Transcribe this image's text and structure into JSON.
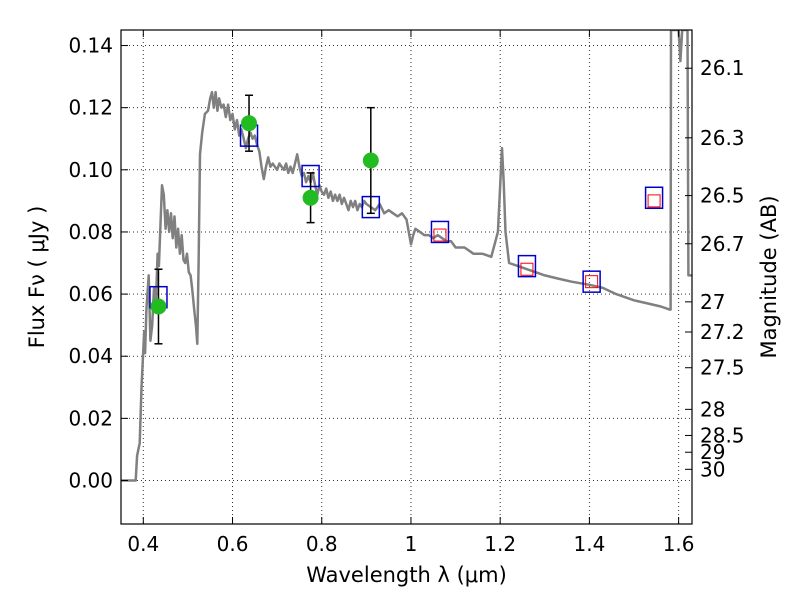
{
  "chart_data": {
    "type": "line",
    "title": "",
    "xlabel": "Wavelength  λ (μm)",
    "ylabel": "Flux  Fν  ( μJy )",
    "ylabel_right": "Magnitude (AB)",
    "xlim": [
      0.35,
      1.63
    ],
    "ylim": [
      -0.014,
      0.145
    ],
    "grid": true,
    "x_ticks": [
      {
        "value": 0.4,
        "label": "0.4"
      },
      {
        "value": 0.6,
        "label": "0.6"
      },
      {
        "value": 0.8,
        "label": "0.8"
      },
      {
        "value": 1.0,
        "label": "1"
      },
      {
        "value": 1.2,
        "label": "1.2"
      },
      {
        "value": 1.4,
        "label": "1.4"
      },
      {
        "value": 1.6,
        "label": "1.6"
      }
    ],
    "y_ticks": [
      {
        "value": 0.0,
        "label": "0.00"
      },
      {
        "value": 0.02,
        "label": "0.02"
      },
      {
        "value": 0.04,
        "label": "0.04"
      },
      {
        "value": 0.06,
        "label": "0.06"
      },
      {
        "value": 0.08,
        "label": "0.08"
      },
      {
        "value": 0.1,
        "label": "0.10"
      },
      {
        "value": 0.12,
        "label": "0.12"
      },
      {
        "value": 0.14,
        "label": "0.14"
      }
    ],
    "mag_ticks": [
      {
        "flux": 0.1327,
        "label": "26.1"
      },
      {
        "flux": 0.1103,
        "label": "26.3"
      },
      {
        "flux": 0.0917,
        "label": "26.5"
      },
      {
        "flux": 0.0762,
        "label": "26.7"
      },
      {
        "flux": 0.0575,
        "label": "27"
      },
      {
        "flux": 0.0478,
        "label": "27.2"
      },
      {
        "flux": 0.0363,
        "label": "27.5"
      },
      {
        "flux": 0.0229,
        "label": "28"
      },
      {
        "flux": 0.0145,
        "label": "28.5"
      },
      {
        "flux": 0.0091,
        "label": "29"
      },
      {
        "flux": 0.0036,
        "label": "30"
      }
    ],
    "sed_model": {
      "color": "#808080",
      "points": [
        [
          0.35,
          0.0
        ],
        [
          0.383,
          0.0
        ],
        [
          0.386,
          0.008
        ],
        [
          0.392,
          0.012
        ],
        [
          0.396,
          0.03
        ],
        [
          0.402,
          0.048
        ],
        [
          0.404,
          0.041
        ],
        [
          0.407,
          0.055
        ],
        [
          0.412,
          0.066
        ],
        [
          0.416,
          0.045
        ],
        [
          0.42,
          0.05
        ],
        [
          0.424,
          0.062
        ],
        [
          0.428,
          0.056
        ],
        [
          0.432,
          0.073
        ],
        [
          0.435,
          0.069
        ],
        [
          0.438,
          0.081
        ],
        [
          0.442,
          0.095
        ],
        [
          0.446,
          0.092
        ],
        [
          0.45,
          0.081
        ],
        [
          0.454,
          0.087
        ],
        [
          0.458,
          0.08
        ],
        [
          0.462,
          0.086
        ],
        [
          0.466,
          0.078
        ],
        [
          0.47,
          0.085
        ],
        [
          0.474,
          0.075
        ],
        [
          0.478,
          0.081
        ],
        [
          0.482,
          0.073
        ],
        [
          0.486,
          0.079
        ],
        [
          0.49,
          0.071
        ],
        [
          0.494,
          0.07
        ],
        [
          0.498,
          0.073
        ],
        [
          0.502,
          0.067
        ],
        [
          0.506,
          0.066
        ],
        [
          0.51,
          0.061
        ],
        [
          0.514,
          0.055
        ],
        [
          0.518,
          0.05
        ],
        [
          0.521,
          0.044
        ],
        [
          0.524,
          0.07
        ],
        [
          0.527,
          0.105
        ],
        [
          0.532,
          0.112
        ],
        [
          0.538,
          0.118
        ],
        [
          0.545,
          0.119
        ],
        [
          0.55,
          0.123
        ],
        [
          0.554,
          0.125
        ],
        [
          0.558,
          0.12
        ],
        [
          0.562,
          0.125
        ],
        [
          0.566,
          0.119
        ],
        [
          0.57,
          0.123
        ],
        [
          0.575,
          0.12
        ],
        [
          0.58,
          0.121
        ],
        [
          0.585,
          0.117
        ],
        [
          0.59,
          0.121
        ],
        [
          0.595,
          0.116
        ],
        [
          0.6,
          0.118
        ],
        [
          0.605,
          0.113
        ],
        [
          0.61,
          0.116
        ],
        [
          0.615,
          0.111
        ],
        [
          0.62,
          0.113
        ],
        [
          0.625,
          0.11
        ],
        [
          0.63,
          0.107
        ],
        [
          0.635,
          0.11
        ],
        [
          0.64,
          0.112
        ],
        [
          0.645,
          0.11
        ],
        [
          0.65,
          0.111
        ],
        [
          0.655,
          0.108
        ],
        [
          0.66,
          0.106
        ],
        [
          0.665,
          0.101
        ],
        [
          0.67,
          0.097
        ],
        [
          0.675,
          0.101
        ],
        [
          0.68,
          0.104
        ],
        [
          0.685,
          0.101
        ],
        [
          0.69,
          0.102
        ],
        [
          0.695,
          0.101
        ],
        [
          0.7,
          0.1
        ],
        [
          0.705,
          0.102
        ],
        [
          0.71,
          0.101
        ],
        [
          0.715,
          0.1
        ],
        [
          0.72,
          0.102
        ],
        [
          0.725,
          0.099
        ],
        [
          0.73,
          0.101
        ],
        [
          0.735,
          0.099
        ],
        [
          0.74,
          0.102
        ],
        [
          0.745,
          0.105
        ],
        [
          0.75,
          0.101
        ],
        [
          0.755,
          0.098
        ],
        [
          0.76,
          0.099
        ],
        [
          0.765,
          0.096
        ],
        [
          0.77,
          0.098
        ],
        [
          0.775,
          0.096
        ],
        [
          0.78,
          0.099
        ],
        [
          0.785,
          0.095
        ],
        [
          0.79,
          0.092
        ],
        [
          0.795,
          0.095
        ],
        [
          0.8,
          0.093
        ],
        [
          0.805,
          0.092
        ],
        [
          0.81,
          0.094
        ],
        [
          0.815,
          0.091
        ],
        [
          0.82,
          0.093
        ],
        [
          0.825,
          0.09
        ],
        [
          0.83,
          0.092
        ],
        [
          0.835,
          0.09
        ],
        [
          0.84,
          0.092
        ],
        [
          0.845,
          0.089
        ],
        [
          0.85,
          0.091
        ],
        [
          0.855,
          0.089
        ],
        [
          0.86,
          0.087
        ],
        [
          0.865,
          0.09
        ],
        [
          0.87,
          0.088
        ],
        [
          0.875,
          0.09
        ],
        [
          0.88,
          0.087
        ],
        [
          0.885,
          0.089
        ],
        [
          0.89,
          0.088
        ],
        [
          0.895,
          0.09
        ],
        [
          0.9,
          0.089
        ],
        [
          0.91,
          0.088
        ],
        [
          0.92,
          0.087
        ],
        [
          0.93,
          0.089
        ],
        [
          0.94,
          0.086
        ],
        [
          0.95,
          0.087
        ],
        [
          0.96,
          0.086
        ],
        [
          0.97,
          0.085
        ],
        [
          0.98,
          0.086
        ],
        [
          0.99,
          0.084
        ],
        [
          1.0,
          0.076
        ],
        [
          1.005,
          0.079
        ],
        [
          1.01,
          0.081
        ],
        [
          1.02,
          0.08
        ],
        [
          1.03,
          0.079
        ],
        [
          1.04,
          0.079
        ],
        [
          1.05,
          0.078
        ],
        [
          1.06,
          0.079
        ],
        [
          1.07,
          0.078
        ],
        [
          1.08,
          0.077
        ],
        [
          1.09,
          0.077
        ],
        [
          1.1,
          0.075
        ],
        [
          1.12,
          0.075
        ],
        [
          1.14,
          0.073
        ],
        [
          1.16,
          0.073
        ],
        [
          1.18,
          0.072
        ],
        [
          1.195,
          0.08
        ],
        [
          1.2,
          0.095
        ],
        [
          1.204,
          0.107
        ],
        [
          1.208,
          0.096
        ],
        [
          1.212,
          0.08
        ],
        [
          1.22,
          0.07
        ],
        [
          1.24,
          0.069
        ],
        [
          1.26,
          0.068
        ],
        [
          1.28,
          0.067
        ],
        [
          1.3,
          0.066
        ],
        [
          1.33,
          0.065
        ],
        [
          1.36,
          0.064
        ],
        [
          1.4,
          0.063
        ],
        [
          1.43,
          0.062
        ],
        [
          1.46,
          0.06
        ],
        [
          1.5,
          0.058
        ],
        [
          1.53,
          0.057
        ],
        [
          1.56,
          0.056
        ],
        [
          1.58,
          0.055
        ],
        [
          1.582,
          0.055
        ],
        [
          1.583,
          0.145
        ],
        [
          1.6,
          0.145
        ],
        [
          1.604,
          0.135
        ],
        [
          1.608,
          0.145
        ],
        [
          1.62,
          0.145
        ],
        [
          1.622,
          0.066
        ],
        [
          1.63,
          0.066
        ]
      ]
    },
    "observed": {
      "color": "#22bb22",
      "points": [
        {
          "x": 0.434,
          "y": 0.056,
          "err": 0.012
        },
        {
          "x": 0.637,
          "y": 0.115,
          "err": 0.009
        },
        {
          "x": 0.775,
          "y": 0.091,
          "err": 0.008
        },
        {
          "x": 0.91,
          "y": 0.103,
          "err": 0.017
        }
      ]
    },
    "model_photometry_blue": {
      "color": "#0000cc",
      "points": [
        {
          "x": 0.434,
          "y": 0.059
        },
        {
          "x": 0.637,
          "y": 0.111
        },
        {
          "x": 0.775,
          "y": 0.098
        },
        {
          "x": 0.91,
          "y": 0.088
        },
        {
          "x": 1.065,
          "y": 0.08
        },
        {
          "x": 1.26,
          "y": 0.069
        },
        {
          "x": 1.405,
          "y": 0.064
        },
        {
          "x": 1.545,
          "y": 0.091
        }
      ]
    },
    "model_photometry_red": {
      "color": "#ff0000",
      "points": [
        {
          "x": 1.065,
          "y": 0.079
        },
        {
          "x": 1.26,
          "y": 0.068
        },
        {
          "x": 1.405,
          "y": 0.064
        },
        {
          "x": 1.545,
          "y": 0.09
        }
      ]
    }
  }
}
